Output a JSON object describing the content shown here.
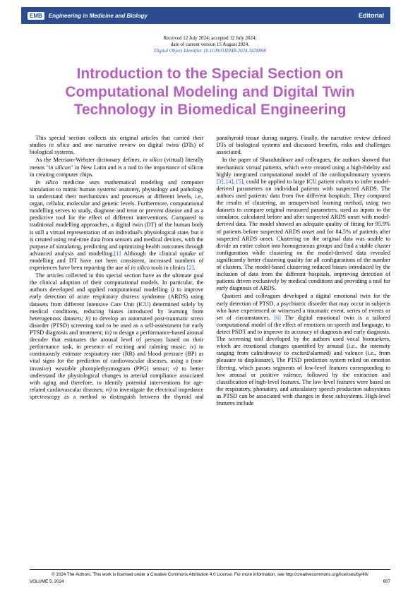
{
  "header": {
    "publisher_badge": "EMB",
    "journal": "Engineering in Medicine and Biology",
    "section": "Editorial"
  },
  "meta": {
    "received": "Received 12 July 2024; accepted 12 July 2024;",
    "current": "date of current version 15 August 2024.",
    "doi": "Digital Object Identifier 10.1109/OJEMB.2024.3428898"
  },
  "title": "Introduction to the Special Section on Computational Modeling and Digital Twin Technology in Biomedical Engineering",
  "paragraphs": [
    "This special section collects six original articles that carried their studies in silico and one narrative review on digital twins (DTs) of biological systems.",
    "As the Merriam-Webster dictionary defines, in silico (virtual) literally means \"in silicon\" in New Latin and is a nod to the importance of silicon in creating computer chips.",
    "In silico medicine uses mathematical modeling and computer simulation to mimic human systems' anatomy, physiology and pathology to understand their mechanisms and processes at different levels, i.e., organ, cellular, molecular and genetic levels. Furthermore, computational modelling serves to study, diagnose and treat or prevent disease and as a predictive tool for the effect of different interventions. Compared to traditional modelling approaches, a digital twin (DT) of the human body is still a virtual representation of an individual's physiological state, but it is created using real-time data from sensors and medical devices, with the purpose of simulating, predicting and optimizing health outcomes through advanced analysis and modelling.[1] Although the clinical uptake of modelling and DT have not been consistent, increased numbers of experiences have been reporting the use of in silico tools in clinics [2].",
    "The articles collected in this special section have as the ultimate goal the clinical adoption of their computational models. In particular, the authors developed and applied computational modelling i) to improve early detection of acute respiratory distress syndrome (ARDS) using datasets from different Intensive Care Unit (ICU) determined solely by medical conditions, reducing biases introduced by learning from heterogenous datasets; ii) to develop an automated post-traumatic stress disorder (PTSD) screening tool to be used as a self-assessment for early PTSD diagnosis and treatment; iii) to design a performance-based arousal decoder that estimates the arousal level of persons based on their performance task, in presence of exciting and calming music; iv) to continuously estimate respiratory rate (RR) and blood pressure (BP) as vital signs for the prediction of cardiovascular diseases, using a (non-invasive) wearable photoplethysmogram (PPG) sensor; v) to better understand the physiological changes in arterial compliance associated with aging and therefore, to identify potential interventions for age-related cardiovascular diseases; vi) to investigate the electrical impedance spectroscopy as a method to distinguish between the thyroid and parathyroid tissue during surgery. Finally, the narrative review defined DTs of biological systems and discussed benefits, risks and challenges associated.",
    "In the paper of Sharafutdinov and colleagues, the authors showed that mechanistic virtual patients, which were created using a high-fidelity and highly integrated computational model of the cardiopulmonary systems [3], [4], [5], could be applied to large ICU patient cohorts to infer model-derived parameters on individual patients with suspected ARDS. The authors used patients' data from five different hospitals. They compared the results of clustering, an unsupervised learning method, using two datasets to compare original measured parameters, used as inputs to the simulator, calculated before and after suspected ARDS onset with model-derived data. The model showed an adequate quality of fitting for 95.9% of patients before suspected ARDS onset and for 84.5% of patients after suspected ARDS onset. Clustering on the original data was unable to divide an entire cohort into homogeneous groups and find a stable cluster configuration while clustering on the model-derived data revealed significantly better clustering quality for all configurations of the number of clusters. The model-based clustering reduced biases introduced by the inclusion of data from the different hospitals, improving detection of patients driven exclusively by medical conditions and providing a tool for early diagnosis of ARDS.",
    "Quatieri and colleagues developed a digital emotional twin for the early detection of PTSD, a psychiatric disorder that may occur in subjects who have experienced or witnessed a traumatic event, series of events or set of circumstances. [6] The digital emotional twin is a tailored computational model of the effect of emotions on speech and language, to detect PSDT and to improve its accuracy of diagnosis and early diagnosis. The screening tool developed by the authors used vocal biomarkers, which are emotional changes quantified by arousal (i.e., the intensity ranging from calm/drowsy to excited/alarmed) and valence (i.e., from pleasure to displeasure). The PTSD prediction system relied on emotion filtering, which passes segments of low-level features corresponding to low arousal or positive valence, followed by the extraction and classification of high-level features. The low-level features were based on the respiratory, phonatory, and articulatory speech production subsystems as PTSD can be associated with changes in these subsystems. High-level features include"
  ],
  "footer": {
    "cc": "© 2024 The Authors. This work is licensed under a Creative Commons Attribution 4.0 License. For more information, see http://creativecommons.org/licenses/by/40/",
    "volume": "VOLUME 5, 2024",
    "page": "607"
  }
}
